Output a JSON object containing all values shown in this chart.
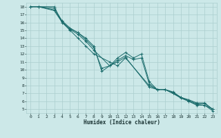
{
  "xlabel": "Humidex (Indice chaleur)",
  "xlim": [
    -0.5,
    23.5
  ],
  "ylim": [
    4.5,
    18.5
  ],
  "xticks": [
    0,
    1,
    2,
    3,
    4,
    5,
    6,
    7,
    8,
    9,
    10,
    11,
    12,
    13,
    14,
    15,
    16,
    17,
    18,
    19,
    20,
    21,
    22,
    23
  ],
  "yticks": [
    5,
    6,
    7,
    8,
    9,
    10,
    11,
    12,
    13,
    14,
    15,
    16,
    17,
    18
  ],
  "bg_color": "#cce8e8",
  "grid_color": "#aacece",
  "line_color": "#1a6b6b",
  "series": [
    {
      "x": [
        0,
        1,
        3,
        4,
        5,
        6,
        7,
        8,
        10,
        11,
        12,
        15,
        16,
        17,
        18,
        19,
        20,
        21,
        22,
        23
      ],
      "y": [
        18,
        18,
        17.5,
        16,
        15,
        14,
        13,
        12,
        11,
        10.5,
        11.5,
        8,
        7.5,
        7.5,
        7,
        6.5,
        6,
        5.5,
        5.5,
        5
      ]
    },
    {
      "x": [
        0,
        1,
        3,
        4,
        5,
        6,
        7,
        8,
        9,
        10,
        11,
        12,
        13,
        14,
        15,
        16,
        17,
        18,
        19,
        20,
        21,
        22,
        23
      ],
      "y": [
        18,
        18,
        18,
        16,
        15.2,
        14.7,
        14,
        13,
        9.8,
        10.5,
        11.5,
        12.2,
        11.5,
        12,
        8.5,
        7.5,
        7.5,
        7.2,
        6.5,
        6.2,
        5.8,
        5.8,
        5
      ]
    },
    {
      "x": [
        0,
        1,
        3,
        4,
        5,
        6,
        7,
        8,
        9,
        10,
        11,
        12,
        13,
        14,
        15,
        16,
        17,
        18,
        19,
        20,
        21,
        22,
        23
      ],
      "y": [
        18,
        18,
        17.8,
        16.2,
        15.3,
        14.7,
        13.8,
        12.8,
        10.2,
        10.5,
        11.2,
        11.8,
        11.3,
        11.5,
        8.2,
        7.5,
        7.5,
        7.1,
        6.5,
        6.1,
        5.7,
        5.7,
        5
      ]
    },
    {
      "x": [
        0,
        1,
        3,
        4,
        5,
        6,
        7,
        8,
        10,
        11,
        12,
        15,
        16,
        17,
        18,
        19,
        20,
        21,
        22,
        23
      ],
      "y": [
        18,
        18,
        17.6,
        16.1,
        15.1,
        14.5,
        13.6,
        12.5,
        10.5,
        11.0,
        11.6,
        7.8,
        7.5,
        7.5,
        7.0,
        6.4,
        6.0,
        5.6,
        5.5,
        4.8
      ]
    }
  ]
}
